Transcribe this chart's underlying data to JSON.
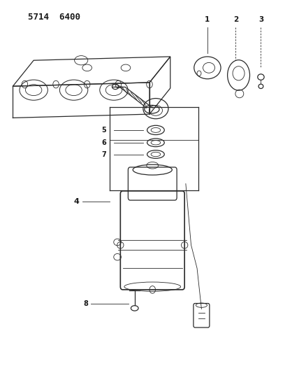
{
  "title": "5714  6400",
  "background_color": "#ffffff",
  "line_color": "#2a2a2a",
  "label_color": "#1a1a1a",
  "figsize": [
    4.28,
    5.33
  ],
  "dpi": 100,
  "lw_thin": 0.6,
  "lw_med": 0.9,
  "lw_thick": 1.2
}
